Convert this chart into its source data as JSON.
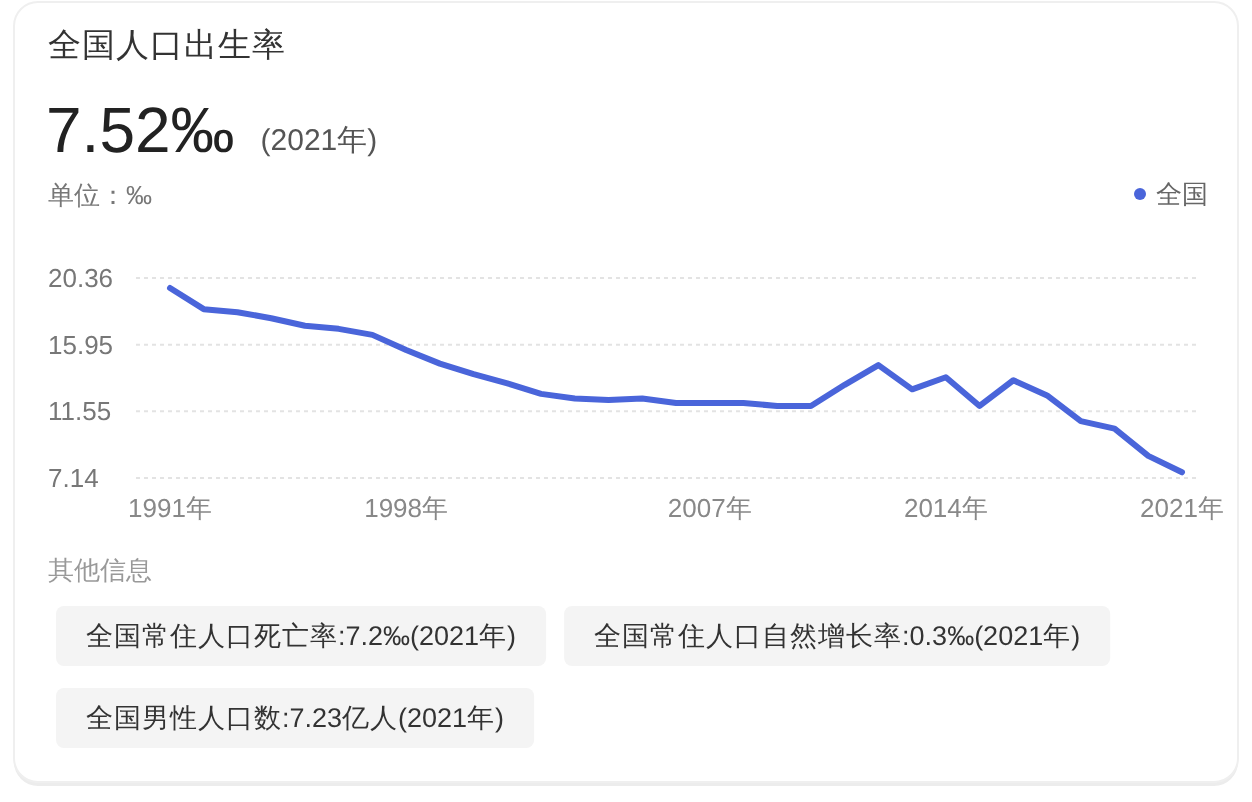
{
  "chart_data": {
    "type": "line",
    "title": "全国人口出生率",
    "subtitle": "7.52‰",
    "ylabel": "单位：‰",
    "categories": [
      "1991年",
      null,
      null,
      null,
      null,
      null,
      null,
      "1998年",
      null,
      null,
      null,
      null,
      null,
      null,
      null,
      null,
      "2007年",
      null,
      null,
      null,
      null,
      null,
      null,
      "2014年",
      null,
      null,
      null,
      null,
      null,
      null,
      "2021年"
    ],
    "series": [
      {
        "name": "全国",
        "color": "#4a65da",
        "values": [
          19.7,
          18.3,
          18.1,
          17.7,
          17.2,
          17.0,
          16.6,
          15.6,
          14.7,
          14.0,
          13.4,
          12.7,
          12.4,
          12.3,
          12.4,
          12.1,
          12.1,
          12.1,
          11.9,
          11.9,
          13.3,
          14.6,
          13.0,
          13.8,
          11.9,
          13.6,
          12.6,
          10.9,
          10.4,
          8.6,
          7.52
        ]
      }
    ],
    "ylim": [
      7.14,
      20.36
    ],
    "yticks": [
      7.14,
      11.55,
      15.95,
      20.36
    ],
    "grid": "y",
    "legend": "top right",
    "annotations": [
      "(2021年)",
      "其他信息",
      "全国常住人口死亡率:7.2‰(2021年)",
      "全国常住人口自然增长率:0.3‰(2021年)",
      "全国男性人口数:7.23亿人(2021年)"
    ]
  }
}
